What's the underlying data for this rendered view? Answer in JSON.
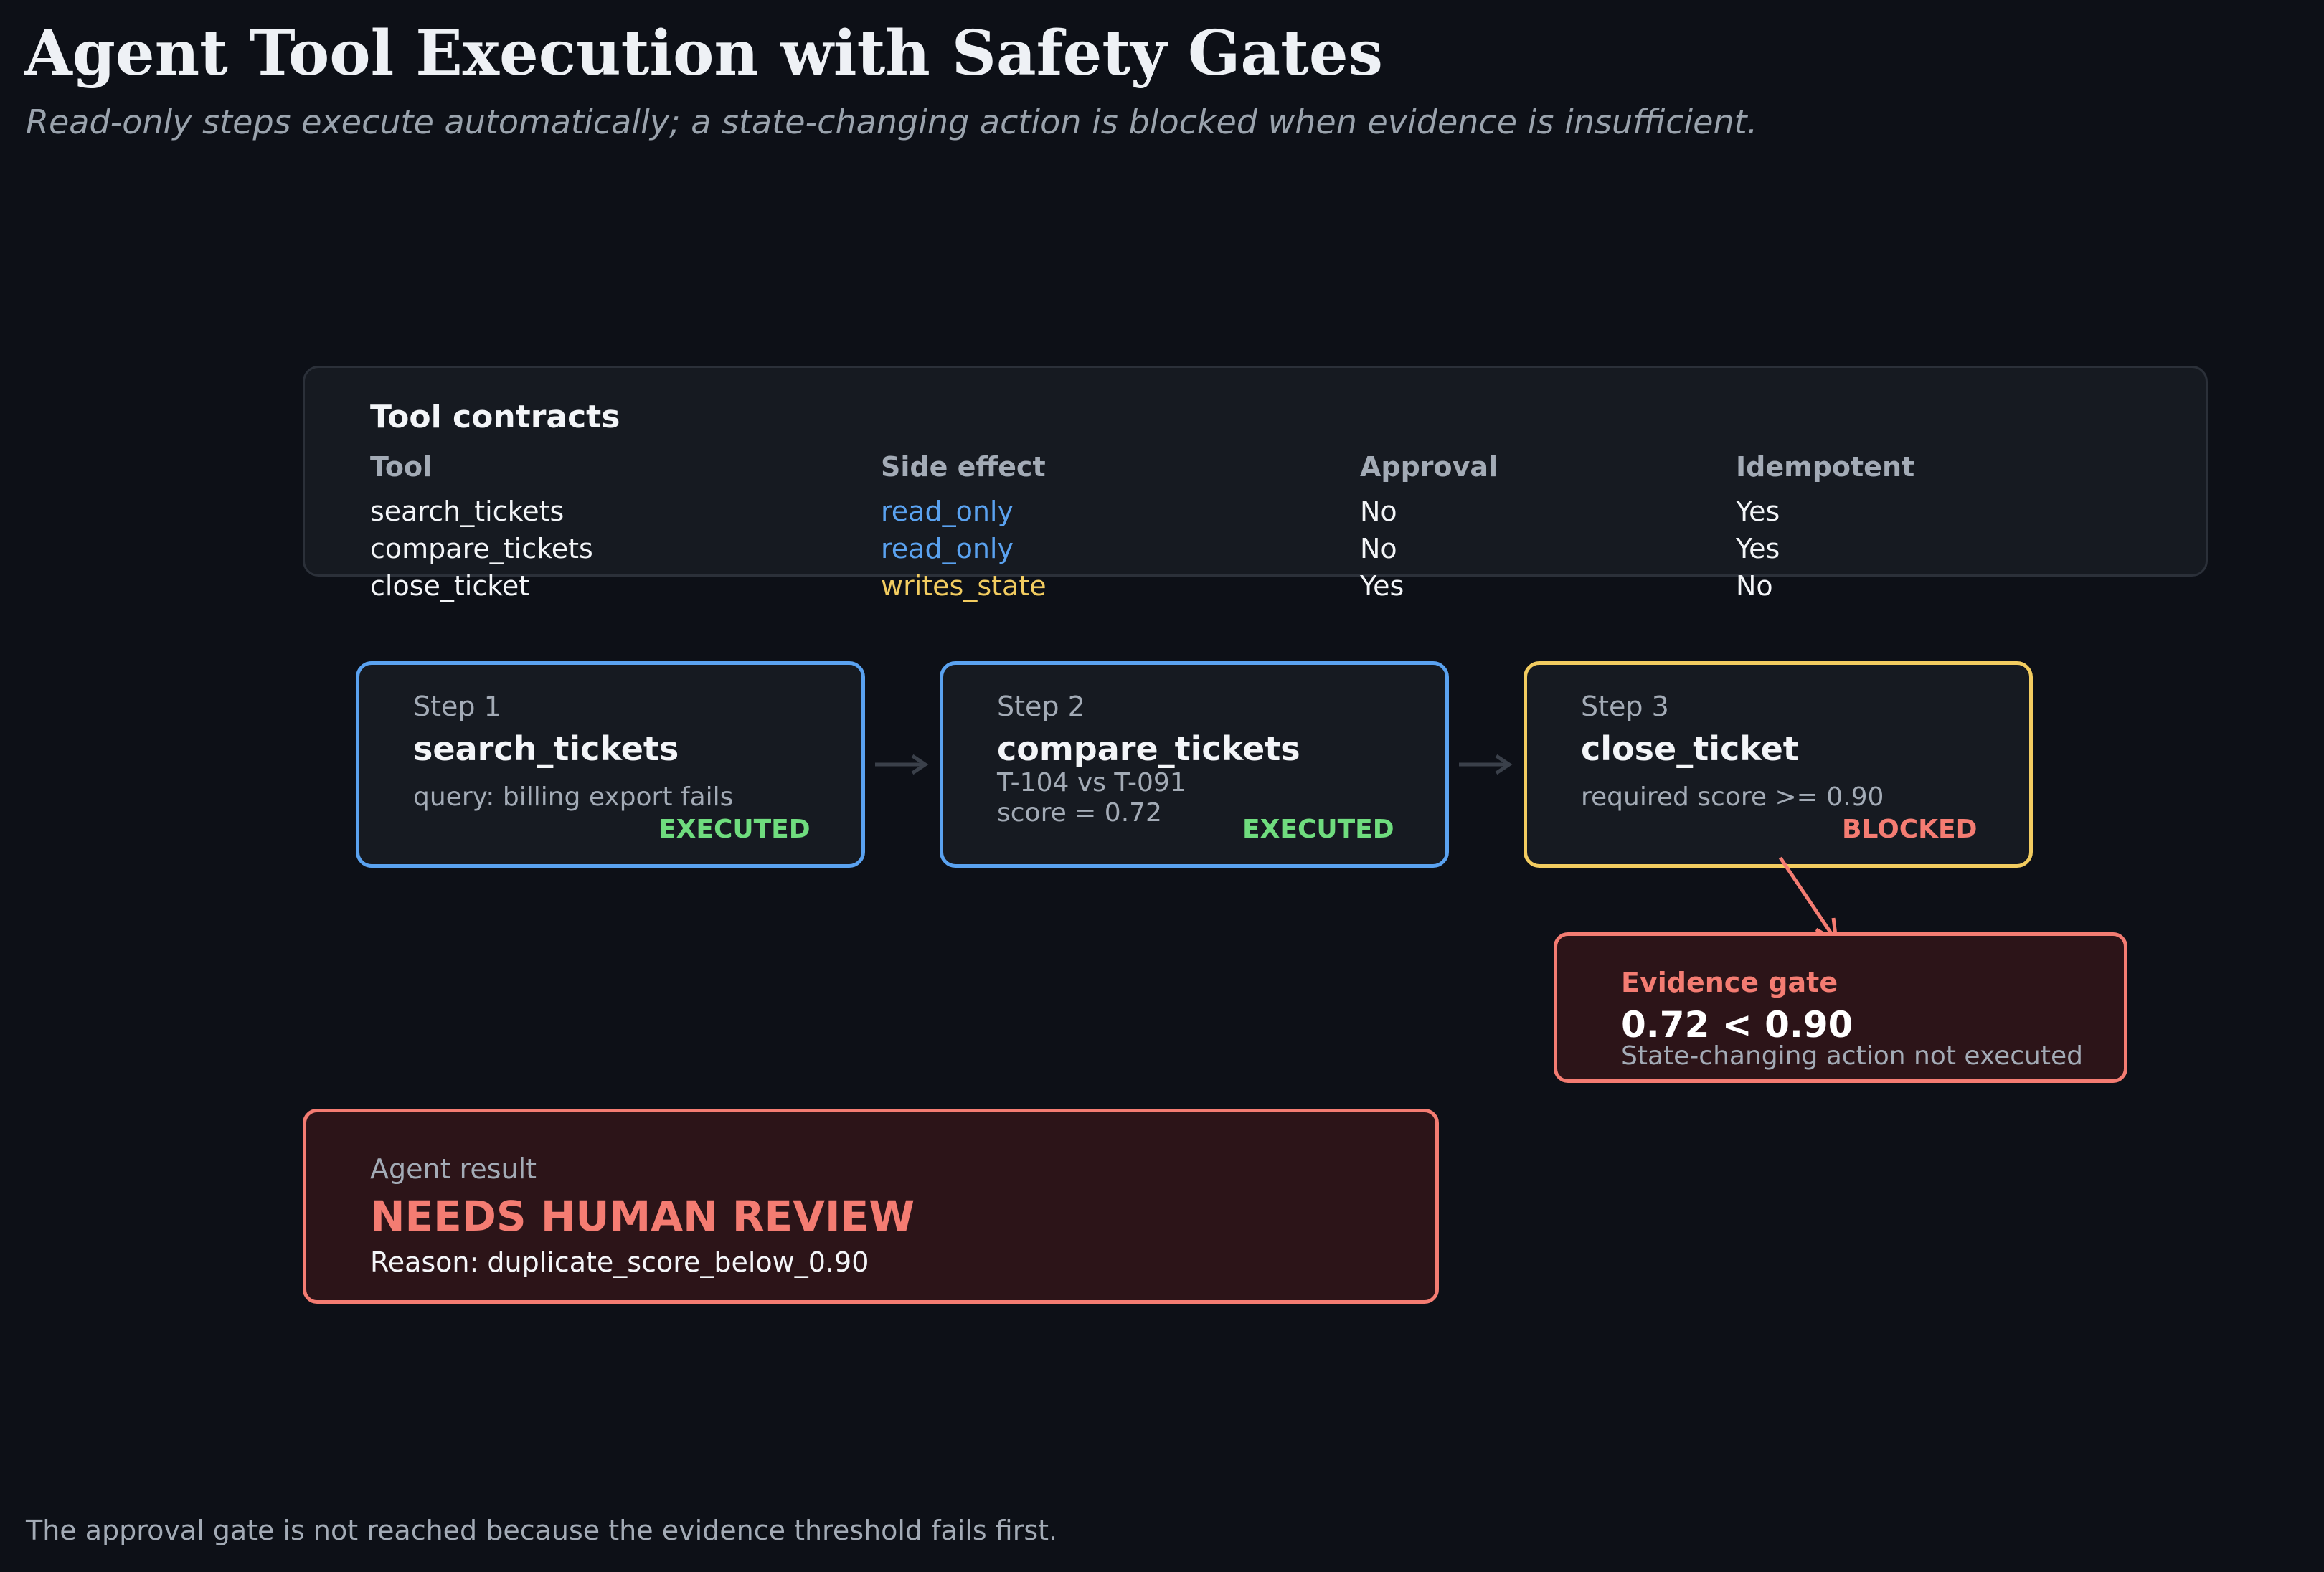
{
  "title": "Agent Tool Execution with Safety Gates",
  "subtitle": "Read-only steps execute automatically; a state-changing action is blocked when evidence is insufficient.",
  "contracts": {
    "title": "Tool contracts",
    "headers": [
      "Tool",
      "Side effect",
      "Approval",
      "Idempotent"
    ],
    "rows": [
      {
        "tool": "search_tickets",
        "side_effect": "read_only",
        "approval": "No",
        "idempotent": "Yes"
      },
      {
        "tool": "compare_tickets",
        "side_effect": "read_only",
        "approval": "No",
        "idempotent": "Yes"
      },
      {
        "tool": "close_ticket",
        "side_effect": "writes_state",
        "approval": "Yes",
        "idempotent": "No"
      }
    ]
  },
  "steps": [
    {
      "label": "Step 1",
      "name": "search_tickets",
      "detail": [
        "query: billing export fails"
      ],
      "status": "EXECUTED"
    },
    {
      "label": "Step 2",
      "name": "compare_tickets",
      "detail": [
        "T-104 vs T-091",
        "score = 0.72"
      ],
      "status": "EXECUTED"
    },
    {
      "label": "Step 3",
      "name": "close_ticket",
      "detail": [
        "required score >= 0.90"
      ],
      "status": "BLOCKED"
    }
  ],
  "gate": {
    "title": "Evidence gate",
    "value": "0.72 < 0.90",
    "note": "State-changing action not executed"
  },
  "result": {
    "label": "Agent result",
    "verdict": "NEEDS HUMAN REVIEW",
    "reason": "Reason: duplicate_score_below_0.90"
  },
  "footer": "The approval gate is not reached because the evidence threshold fails first.",
  "colors": {
    "background": "#0d1017",
    "panel": "#161a21",
    "read_only": "#5aa2f0",
    "writes_state": "#f2cc60",
    "executed": "#6fdc7e",
    "blocked": "#f47c72",
    "blocked_fill": "#2c1418",
    "arrow_gray": "#3a404a"
  }
}
